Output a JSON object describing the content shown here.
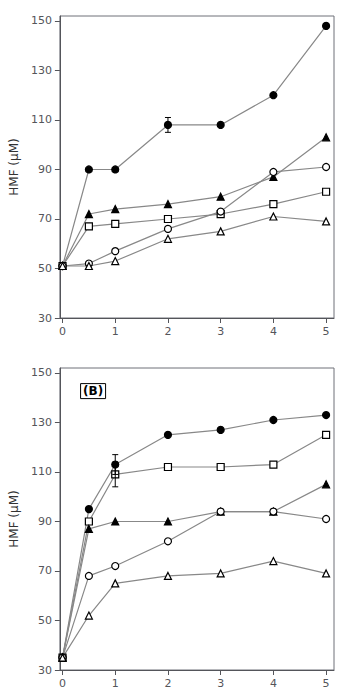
{
  "chart_data": [
    {
      "type": "line",
      "ylabel": "HMF (μM)",
      "x": [
        0,
        0.5,
        1,
        2,
        3,
        4,
        5
      ],
      "series": [
        {
          "values": [
            51,
            90,
            90,
            108,
            108,
            120,
            148
          ],
          "marker": "filled circle",
          "errors": [
            null,
            null,
            null,
            3,
            null,
            null,
            null
          ]
        },
        {
          "values": [
            51,
            72,
            74,
            76,
            79,
            87,
            103
          ],
          "marker": "filled triangle"
        },
        {
          "values": [
            51,
            67,
            68,
            70,
            72,
            76,
            81
          ],
          "marker": "open square"
        },
        {
          "values": [
            51,
            52,
            57,
            66,
            73,
            89,
            91
          ],
          "marker": "open circle"
        },
        {
          "values": [
            51,
            51,
            53,
            62,
            65,
            71,
            69
          ],
          "marker": "open triangle"
        }
      ],
      "color": "#888888",
      "xlim": [
        -0.05,
        5.15
      ],
      "xticks": [
        0,
        1,
        2,
        3,
        4,
        5
      ],
      "ylim": [
        30,
        152
      ],
      "yticks": [
        30,
        50,
        70,
        90,
        110,
        130,
        150
      ],
      "grid": false
    },
    {
      "type": "line",
      "annotation": "(B)",
      "ylabel": "HMF (μM)",
      "x": [
        0,
        0.5,
        1,
        2,
        3,
        4,
        5
      ],
      "series": [
        {
          "values": [
            35,
            95,
            113,
            125,
            127,
            131,
            133
          ],
          "marker": "filled circle",
          "errors": [
            null,
            null,
            4,
            null,
            null,
            null,
            null
          ]
        },
        {
          "values": [
            35,
            90,
            109,
            112,
            112,
            113,
            125
          ],
          "marker": "open square",
          "errors": [
            null,
            null,
            5,
            null,
            null,
            null,
            null
          ]
        },
        {
          "values": [
            35,
            87,
            90,
            90,
            94,
            94,
            105
          ],
          "marker": "filled triangle"
        },
        {
          "values": [
            35,
            68,
            72,
            82,
            94,
            94,
            91
          ],
          "marker": "open circle"
        },
        {
          "values": [
            35,
            52,
            65,
            68,
            69,
            74,
            69
          ],
          "marker": "open triangle"
        }
      ],
      "color": "#888888",
      "xlim": [
        -0.05,
        5.15
      ],
      "xticks": [
        0,
        1,
        2,
        3,
        4,
        5
      ],
      "ylim": [
        30,
        152
      ],
      "yticks": [
        30,
        50,
        70,
        90,
        110,
        130,
        150
      ],
      "grid": false
    }
  ]
}
